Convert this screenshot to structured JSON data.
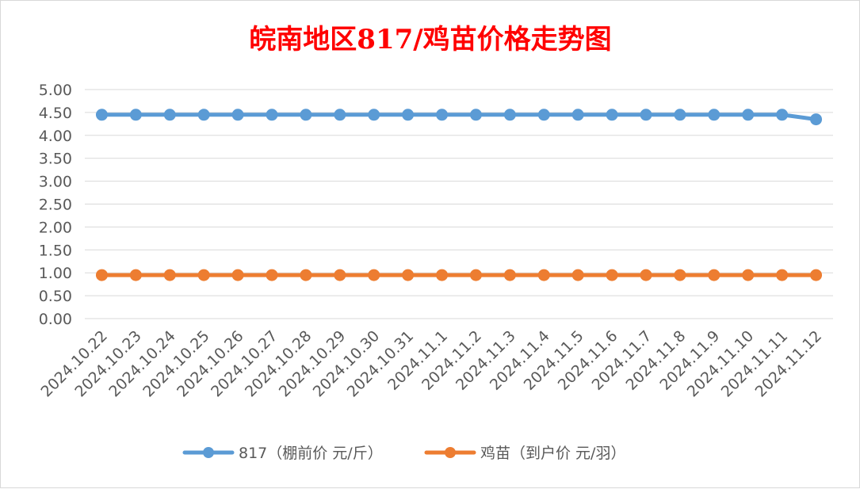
{
  "chart_data": {
    "type": "line",
    "title": "皖南地区817/鸡苗价格走势图",
    "xlabel": "",
    "ylabel": "",
    "categories": [
      "2024.10.22",
      "2024.10.23",
      "2024.10.24",
      "2024.10.25",
      "2024.10.26",
      "2024.10.27",
      "2024.10.28",
      "2024.10.29",
      "2024.10.30",
      "2024.10.31",
      "2024.11.1",
      "2024.11.2",
      "2024.11.3",
      "2024.11.4",
      "2024.11.5",
      "2024.11.6",
      "2024.11.7",
      "2024.11.8",
      "2024.11.9",
      "2024.11.10",
      "2024.11.11",
      "2024.11.12"
    ],
    "yticks": [
      "0.00",
      "0.50",
      "1.00",
      "1.50",
      "2.00",
      "2.50",
      "3.00",
      "3.50",
      "4.00",
      "4.50",
      "5.00"
    ],
    "ylim": [
      0,
      5
    ],
    "grid": true,
    "legend_position": "bottom",
    "series": [
      {
        "name": "817（棚前价 元/斤）",
        "color": "#5b9bd5",
        "values": [
          4.45,
          4.45,
          4.45,
          4.45,
          4.45,
          4.45,
          4.45,
          4.45,
          4.45,
          4.45,
          4.45,
          4.45,
          4.45,
          4.45,
          4.45,
          4.45,
          4.45,
          4.45,
          4.45,
          4.45,
          4.45,
          4.35
        ]
      },
      {
        "name": "鸡苗（到户价 元/羽）",
        "color": "#ed7d31",
        "values": [
          0.95,
          0.95,
          0.95,
          0.95,
          0.95,
          0.95,
          0.95,
          0.95,
          0.95,
          0.95,
          0.95,
          0.95,
          0.95,
          0.95,
          0.95,
          0.95,
          0.95,
          0.95,
          0.95,
          0.95,
          0.95,
          0.95
        ]
      }
    ]
  }
}
